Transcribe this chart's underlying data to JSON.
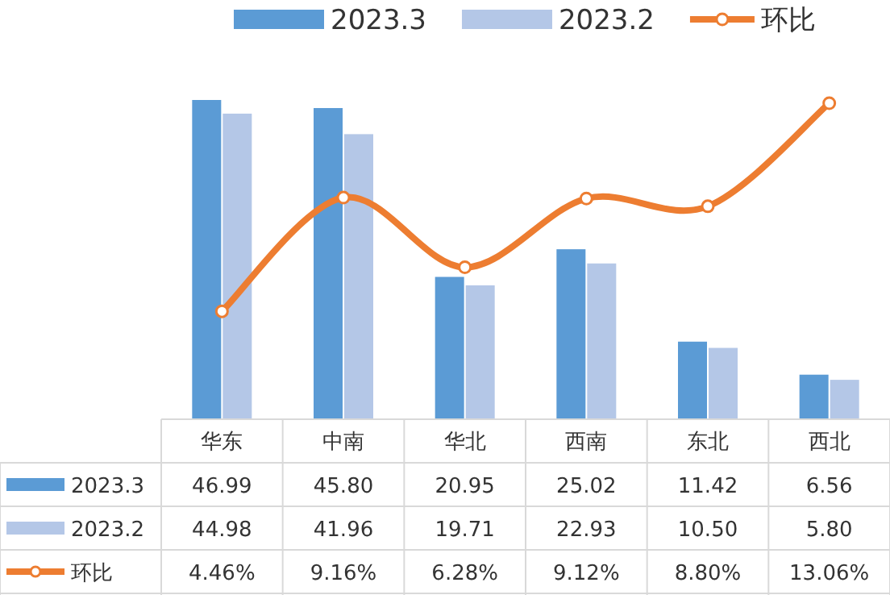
{
  "chart_data": {
    "type": "bar",
    "categories": [
      "华东",
      "中南",
      "华北",
      "西南",
      "东北",
      "西北"
    ],
    "series": [
      {
        "name": "2023.3",
        "color": "#5b9bd5",
        "values": [
          46.99,
          45.8,
          20.95,
          25.02,
          11.42,
          6.56
        ],
        "value_labels": [
          "46.99",
          "45.80",
          "20.95",
          "25.02",
          "11.42",
          "6.56"
        ]
      },
      {
        "name": "2023.2",
        "color": "#b4c7e7",
        "values": [
          44.98,
          41.96,
          19.71,
          22.93,
          10.5,
          5.8
        ],
        "value_labels": [
          "44.98",
          "41.96",
          "19.71",
          "22.93",
          "10.50",
          "5.80"
        ]
      },
      {
        "name": "环比",
        "type": "line",
        "axis": "y2",
        "color": "#ed7d31",
        "marker": "circle",
        "values": [
          4.46,
          9.16,
          6.28,
          9.12,
          8.8,
          13.06
        ],
        "value_labels": [
          "4.46%",
          "9.16%",
          "6.28%",
          "9.12%",
          "8.80%",
          "13.06%"
        ]
      }
    ],
    "legend": "top"
  }
}
